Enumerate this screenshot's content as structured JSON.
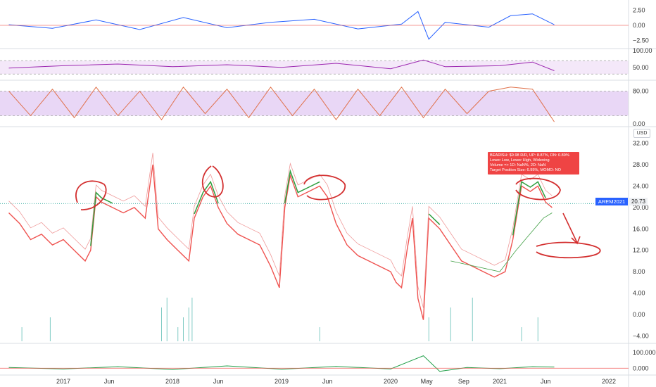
{
  "chart_data": [
    {
      "type": "line",
      "panel": "macd",
      "ylim": [
        -3.5,
        3.5
      ],
      "yticks": [
        2.5,
        0.0,
        -2.5
      ],
      "ytick_labels": [
        "2.50",
        "0.00",
        "−2.50"
      ],
      "series": [
        {
          "x": [
            2016.5,
            2016.9,
            2017.3,
            2017.7,
            2018.1,
            2018.5,
            2018.9,
            2019.3,
            2019.7,
            2020.1,
            2020.25,
            2020.35,
            2020.5,
            2020.9,
            2021.1,
            2021.3,
            2021.5
          ],
          "values": [
            0.1,
            -0.5,
            0.9,
            -0.7,
            1.3,
            -0.4,
            0.5,
            1.0,
            -0.6,
            0.2,
            2.3,
            -2.3,
            0.5,
            -0.3,
            1.6,
            1.9,
            0.1
          ]
        }
      ],
      "color": "#2962ff"
    },
    {
      "type": "line",
      "panel": "rsi",
      "ylim": [
        20,
        100
      ],
      "yticks": [
        100,
        50
      ],
      "ytick_labels": [
        "100.00",
        "50.00"
      ],
      "band": [
        30,
        70
      ],
      "series": [
        {
          "x": [
            2016.5,
            2017.0,
            2017.5,
            2018.0,
            2018.5,
            2019.0,
            2019.5,
            2020.0,
            2020.3,
            2020.5,
            2021.0,
            2021.3,
            2021.5
          ],
          "values": [
            48,
            55,
            60,
            52,
            58,
            50,
            62,
            46,
            72,
            52,
            55,
            66,
            40
          ]
        }
      ],
      "color": "#9c27b0"
    },
    {
      "type": "line",
      "panel": "stochastic",
      "ylim": [
        0,
        100
      ],
      "yticks": [
        80,
        0
      ],
      "ytick_labels": [
        "80.00",
        "0.00"
      ],
      "band": [
        20,
        80
      ],
      "series": [
        {
          "x": [
            2016.5,
            2016.7,
            2016.9,
            2017.1,
            2017.3,
            2017.5,
            2017.7,
            2017.9,
            2018.1,
            2018.3,
            2018.5,
            2018.7,
            2018.9,
            2019.1,
            2019.3,
            2019.5,
            2019.7,
            2019.9,
            2020.1,
            2020.3,
            2020.5,
            2020.7,
            2020.9,
            2021.1,
            2021.3,
            2021.5
          ],
          "values": [
            80,
            20,
            85,
            15,
            90,
            20,
            80,
            10,
            90,
            25,
            85,
            15,
            90,
            20,
            85,
            10,
            85,
            20,
            90,
            15,
            85,
            25,
            80,
            90,
            85,
            5
          ]
        }
      ],
      "color": "#e0704a"
    },
    {
      "type": "line",
      "panel": "price",
      "ylim": [
        -5,
        33
      ],
      "yticks": [
        32,
        28,
        24,
        20,
        16,
        12,
        8,
        4,
        0,
        -4
      ],
      "ytick_labels": [
        "32.00",
        "28.00",
        "24.00",
        "20.00",
        "16.00",
        "12.00",
        "8.00",
        "4.00",
        "0.00",
        "−4.00"
      ],
      "x_ticks": [
        2017.0,
        2017.42,
        2018.0,
        2018.42,
        2019.0,
        2019.42,
        2020.0,
        2020.33,
        2020.67,
        2021.0,
        2021.42,
        2022.0
      ],
      "x_tick_labels": [
        "2017",
        "Jun",
        "2018",
        "Jun",
        "2019",
        "Jun",
        "2020",
        "May",
        "Sep",
        "2021",
        "Jun",
        "2022"
      ],
      "series": [
        {
          "name": "",
          "x": [
            2016.5,
            2016.6,
            2016.7,
            2016.8,
            2016.9,
            2017.0,
            2017.1,
            2017.2,
            2017.25,
            2017.3,
            2017.35,
            2017.45,
            2017.55,
            2017.65,
            2017.75,
            2017.82,
            2017.87,
            2017.95,
            2018.05,
            2018.15,
            2018.2,
            2018.28,
            2018.35,
            2018.42,
            2018.5,
            2018.6,
            2018.7,
            2018.8,
            2018.9,
            2018.98,
            2019.03,
            2019.08,
            2019.15,
            2019.25,
            2019.35,
            2019.42,
            2019.5,
            2019.6,
            2019.7,
            2019.8,
            2019.9,
            2020.0,
            2020.05,
            2020.1,
            2020.15,
            2020.2,
            2020.25,
            2020.3,
            2020.35,
            2020.45,
            2020.55,
            2020.65,
            2020.75,
            2020.85,
            2020.95,
            2021.05,
            2021.12,
            2021.2,
            2021.28,
            2021.35,
            2021.42,
            2021.48
          ],
          "values": [
            19,
            17,
            14,
            15,
            13,
            14,
            12,
            10,
            12,
            22,
            21,
            20,
            19,
            20,
            18,
            28,
            16,
            14,
            12,
            10,
            18,
            22,
            24,
            20,
            17,
            15,
            14,
            13,
            9,
            5,
            20,
            26,
            22,
            23,
            24,
            22,
            17,
            13,
            11,
            10,
            9,
            8,
            6,
            5,
            12,
            18,
            3,
            -1,
            18,
            16,
            13,
            10,
            9,
            8,
            7,
            8,
            14,
            24,
            23,
            24,
            21,
            20
          ]
        }
      ],
      "current_value": "20.73",
      "current_label": "AREM2021",
      "currency": "USD",
      "volume_spikes": [
        2016.62,
        2016.88,
        2017.9,
        2017.95,
        2018.05,
        2018.1,
        2018.15,
        2018.18,
        2019.35,
        2020.35,
        2020.55,
        2020.75,
        2021.2,
        2021.35
      ],
      "tooltip": [
        "BEARISH: $9.98 R/R, UP: 8.87%, DN: 0.89%",
        "Lower Low, Lower High, Widening",
        "Volume => 1D: NaN%, 2D: NaN",
        "Target Position Size: 6.95%, MOMO: NO"
      ]
    },
    {
      "type": "line",
      "panel": "oscillator",
      "ylim": [
        -30,
        150
      ],
      "yticks": [
        100,
        0
      ],
      "ytick_labels": [
        "100.000",
        "0.000"
      ],
      "series": [
        {
          "x": [
            2016.5,
            2017.0,
            2017.5,
            2018.0,
            2018.5,
            2019.0,
            2019.5,
            2020.0,
            2020.3,
            2020.45,
            2020.7,
            2021.0,
            2021.3,
            2021.5
          ],
          "values": [
            5,
            -5,
            10,
            -8,
            15,
            -6,
            12,
            -5,
            80,
            -20,
            5,
            -3,
            10,
            8
          ]
        }
      ],
      "color": "#22a04a"
    }
  ]
}
